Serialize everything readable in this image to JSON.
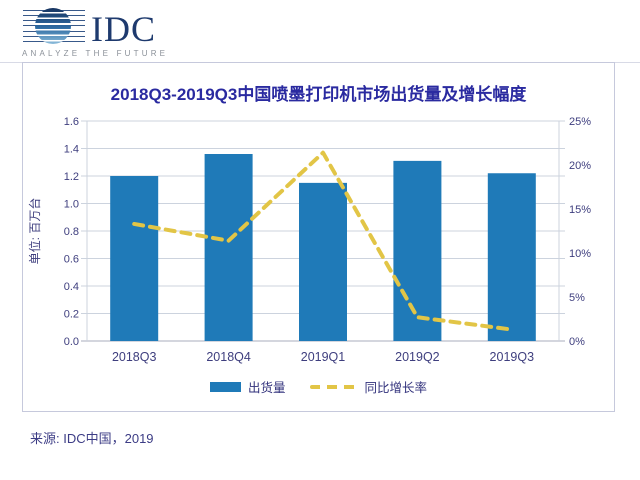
{
  "logo": {
    "name": "IDC",
    "tagline": "ANALYZE THE FUTURE"
  },
  "source_note": "来源: IDC中国，2019",
  "colors": {
    "bar": "#1f7ab8",
    "line": "#e2c546",
    "title_text": "#2a2aa0",
    "axis_text": "#3e3e7e",
    "grid": "#ccd3de",
    "axis_line": "#a8adbc",
    "box_border": "#c6c9dc"
  },
  "chart_data": {
    "type": "bar",
    "subtype": "bar+line combo, dual axis",
    "title": "2018Q3-2019Q3中国喷墨打印机市场出货量及增长幅度",
    "categories": [
      "2018Q3",
      "2018Q4",
      "2019Q1",
      "2019Q2",
      "2019Q3"
    ],
    "series": [
      {
        "name": "出货量",
        "type": "bar",
        "axis": "left",
        "unit": "百万台",
        "values": [
          1.2,
          1.36,
          1.15,
          1.31,
          1.22
        ]
      },
      {
        "name": "同比增长率",
        "type": "line",
        "style": "dashed",
        "axis": "right",
        "unit": "%",
        "values": [
          13.3,
          11.4,
          21.4,
          2.7,
          1.3
        ]
      }
    ],
    "left_axis": {
      "label": "单位: 百万台",
      "min": 0,
      "max": 1.6,
      "step": 0.2
    },
    "right_axis": {
      "min": 0,
      "max": 25,
      "step": 5,
      "suffix": "%"
    },
    "grid": true,
    "legend_position": "bottom"
  }
}
